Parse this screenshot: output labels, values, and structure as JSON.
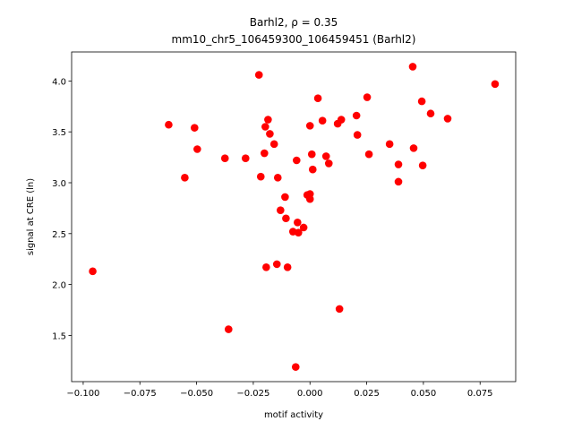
{
  "chart_data": {
    "type": "scatter",
    "title": "Barhl2, ρ = 0.35",
    "subtitle": "mm10_chr5_106459300_106459451 (Barhl2)",
    "x_label": "motif activity",
    "y_label": "signal at CRE (ln)",
    "color": "red",
    "xlim": [
      -0.1051,
      0.0907
    ],
    "ylim": [
      1.046,
      4.285
    ],
    "xticks": [
      {
        "value": -0.1,
        "label": "−0.100"
      },
      {
        "value": -0.075,
        "label": "−0.075"
      },
      {
        "value": -0.05,
        "label": "−0.050"
      },
      {
        "value": -0.025,
        "label": "−0.025"
      },
      {
        "value": 0,
        "label": "0.000"
      },
      {
        "value": 0.025,
        "label": "0.025"
      },
      {
        "value": 0.05,
        "label": "0.050"
      },
      {
        "value": 0.075,
        "label": "0.075"
      }
    ],
    "yticks": [
      {
        "value": 1.5,
        "label": "1.5"
      },
      {
        "value": 2,
        "label": "2.0"
      },
      {
        "value": 2.5,
        "label": "2.5"
      },
      {
        "value": 3,
        "label": "3.0"
      },
      {
        "value": 3.5,
        "label": "3.5"
      },
      {
        "value": 4,
        "label": "4.0"
      }
    ],
    "x": [
      -0.0958,
      -0.0623,
      -0.0552,
      -0.0509,
      -0.0497,
      -0.0375,
      -0.0359,
      -0.0284,
      -0.0225,
      -0.0217,
      -0.0201,
      -0.0197,
      -0.0193,
      -0.0185,
      -0.0177,
      -0.0158,
      -0.0146,
      -0.0142,
      -0.013,
      -0.011,
      -0.0106,
      -0.0099,
      -0.0075,
      -0.0063,
      -0.0059,
      -0.0055,
      -0.0051,
      -0.0028,
      -0.0012,
      0.0,
      0.0,
      0.0,
      0.0008,
      0.0012,
      0.0035,
      0.0055,
      0.0071,
      0.0083,
      0.0122,
      0.013,
      0.0138,
      0.0205,
      0.0209,
      0.0252,
      0.026,
      0.0351,
      0.039,
      0.039,
      0.0453,
      0.0457,
      0.0493,
      0.0497,
      0.0532,
      0.0607,
      0.0816
    ],
    "values": [
      2.13,
      3.57,
      3.05,
      3.54,
      3.33,
      3.24,
      1.56,
      3.24,
      4.06,
      3.06,
      3.29,
      3.55,
      2.17,
      3.62,
      3.48,
      3.38,
      2.2,
      3.05,
      2.73,
      2.86,
      2.65,
      2.17,
      2.52,
      1.19,
      3.22,
      2.61,
      2.51,
      2.56,
      2.88,
      2.89,
      2.84,
      3.56,
      3.28,
      3.13,
      3.83,
      3.61,
      3.26,
      3.19,
      3.58,
      1.76,
      3.62,
      3.66,
      3.47,
      3.84,
      3.28,
      3.38,
      3.18,
      3.01,
      4.14,
      3.34,
      3.8,
      3.17,
      3.68,
      3.63,
      3.97
    ]
  }
}
